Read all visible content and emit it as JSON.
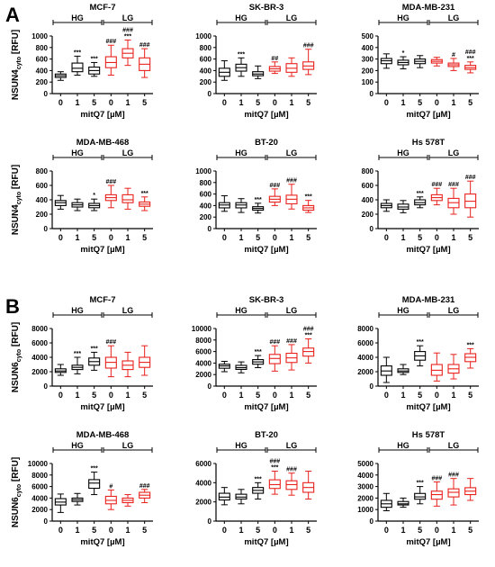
{
  "panel_labels": [
    "A",
    "B"
  ],
  "chart_data": [
    {
      "type": "box",
      "panel": "A",
      "title": "MCF-7",
      "ylabel": "NSUN4cyto [RFU]",
      "ylim": [
        0,
        1000
      ],
      "yticks": [
        0,
        200,
        400,
        600,
        800,
        1000
      ],
      "xlabel": "mitQ7 [µM]",
      "categories": [
        "0",
        "1",
        "5",
        "0",
        "1",
        "5"
      ],
      "groups": [
        "HG",
        "LG"
      ],
      "series": [
        {
          "name": "HG",
          "color": "#000000",
          "boxes": [
            [
              230,
              280,
              310,
              340,
              380
            ],
            [
              320,
              380,
              440,
              530,
              650
            ],
            [
              300,
              340,
              400,
              460,
              540
            ]
          ]
        },
        {
          "name": "LG",
          "color": "#e8211c",
          "boxes": [
            [
              320,
              450,
              540,
              640,
              840
            ],
            [
              490,
              620,
              700,
              780,
              930
            ],
            [
              280,
              400,
              510,
              620,
              780
            ]
          ]
        }
      ],
      "sig_top": [
        "",
        "***",
        "***",
        "",
        "###",
        ""
      ],
      "sig_bottom": [
        "",
        "",
        "",
        "###",
        "***",
        "###"
      ]
    },
    {
      "type": "box",
      "panel": "A",
      "title": "SK-BR-3",
      "ylabel": "",
      "ylim": [
        0,
        1000
      ],
      "yticks": [
        0,
        200,
        400,
        600,
        800,
        1000
      ],
      "xlabel": "mitQ7 [µM]",
      "categories": [
        "0",
        "1",
        "5",
        "0",
        "1",
        "5"
      ],
      "groups": [
        "HG",
        "LG"
      ],
      "series": [
        {
          "name": "HG",
          "color": "#000000",
          "boxes": [
            [
              230,
              300,
              370,
              440,
              570
            ],
            [
              300,
              390,
              450,
              510,
              620
            ],
            [
              260,
              310,
              340,
              380,
              480
            ]
          ]
        },
        {
          "name": "LG",
          "color": "#e8211c",
          "boxes": [
            [
              350,
              390,
              430,
              470,
              550
            ],
            [
              300,
              370,
              440,
              520,
              620
            ],
            [
              330,
              420,
              480,
              550,
              770
            ]
          ]
        }
      ],
      "sig_top": [
        "",
        "***",
        "",
        "",
        "",
        "###"
      ],
      "sig_bottom": [
        "",
        "",
        "",
        "##",
        "",
        ""
      ]
    },
    {
      "type": "box",
      "panel": "A",
      "title": "MDA-MB-231",
      "ylabel": "",
      "ylim": [
        0,
        500
      ],
      "yticks": [
        0,
        100,
        200,
        300,
        400,
        500
      ],
      "xlabel": "mitQ7 [µM]",
      "categories": [
        "0",
        "1",
        "5",
        "0",
        "1",
        "5"
      ],
      "groups": [
        "HG",
        "LG"
      ],
      "series": [
        {
          "name": "HG",
          "color": "#000000",
          "boxes": [
            [
              220,
              260,
              285,
              305,
              345
            ],
            [
              215,
              250,
              270,
              290,
              320
            ],
            [
              225,
              260,
              280,
              300,
              330
            ]
          ]
        },
        {
          "name": "LG",
          "color": "#e8211c",
          "boxes": [
            [
              240,
              265,
              280,
              295,
              315
            ],
            [
              200,
              235,
              250,
              265,
              305
            ],
            [
              180,
              210,
              225,
              245,
              275
            ]
          ]
        }
      ],
      "sig_top": [
        "",
        "*",
        "",
        "",
        "#",
        "###"
      ],
      "sig_bottom": [
        "",
        "",
        "",
        "",
        "",
        "***"
      ]
    },
    {
      "type": "box",
      "panel": "A",
      "title": "MDA-MB-468",
      "ylabel": "NSUN4cyto [RFU]",
      "ylim": [
        0,
        800
      ],
      "yticks": [
        0,
        200,
        400,
        600,
        800
      ],
      "xlabel": "mitQ7 [µM]",
      "categories": [
        "0",
        "1",
        "5",
        "0",
        "1",
        "5"
      ],
      "groups": [
        "HG",
        "LG"
      ],
      "series": [
        {
          "name": "HG",
          "color": "#000000",
          "boxes": [
            [
              270,
              320,
              360,
              390,
              460
            ],
            [
              250,
              300,
              330,
              360,
              410
            ],
            [
              250,
              290,
              320,
              350,
              410
            ]
          ]
        },
        {
          "name": "LG",
          "color": "#e8211c",
          "boxes": [
            [
              290,
              390,
              430,
              470,
              600
            ],
            [
              270,
              360,
              400,
              470,
              560
            ],
            [
              250,
              310,
              340,
              370,
              440
            ]
          ]
        }
      ],
      "sig_top": [
        "",
        "",
        "*",
        "###",
        "",
        "***"
      ],
      "sig_bottom": [
        "",
        "",
        "",
        "",
        "",
        ""
      ]
    },
    {
      "type": "box",
      "panel": "A",
      "title": "BT-20",
      "ylabel": "",
      "ylim": [
        0,
        1000
      ],
      "yticks": [
        0,
        200,
        400,
        600,
        800,
        1000
      ],
      "xlabel": "mitQ7 [µM]",
      "categories": [
        "0",
        "1",
        "5",
        "0",
        "1",
        "5"
      ],
      "groups": [
        "HG",
        "LG"
      ],
      "series": [
        {
          "name": "HG",
          "color": "#000000",
          "boxes": [
            [
              300,
              360,
              410,
              450,
              570
            ],
            [
              280,
              360,
              410,
              450,
              520
            ],
            [
              270,
              320,
              350,
              380,
              440
            ]
          ]
        },
        {
          "name": "LG",
          "color": "#e8211c",
          "boxes": [
            [
              400,
              460,
              510,
              560,
              690
            ],
            [
              340,
              430,
              510,
              580,
              770
            ],
            [
              280,
              320,
              360,
              400,
              490
            ]
          ]
        }
      ],
      "sig_top": [
        "",
        "",
        "***",
        "###",
        "###",
        "***"
      ],
      "sig_bottom": [
        "",
        "",
        "",
        "",
        "",
        ""
      ]
    },
    {
      "type": "box",
      "panel": "A",
      "title": "Hs 578T",
      "ylabel": "",
      "ylim": [
        0,
        800
      ],
      "yticks": [
        0,
        200,
        400,
        600,
        800
      ],
      "xlabel": "mitQ7 [µM]",
      "categories": [
        "0",
        "1",
        "5",
        "0",
        "1",
        "5"
      ],
      "groups": [
        "HG",
        "LG"
      ],
      "series": [
        {
          "name": "HG",
          "color": "#000000",
          "boxes": [
            [
              240,
              290,
              320,
              350,
              400
            ],
            [
              220,
              270,
              300,
              340,
              390
            ],
            [
              290,
              330,
              360,
              400,
              440
            ]
          ]
        },
        {
          "name": "LG",
          "color": "#e8211c",
          "boxes": [
            [
              330,
              390,
              430,
              470,
              560
            ],
            [
              200,
              290,
              360,
              420,
              560
            ],
            [
              160,
              290,
              380,
              480,
              660
            ]
          ]
        }
      ],
      "sig_top": [
        "",
        "",
        "***",
        "###",
        "###",
        "###"
      ],
      "sig_bottom": [
        "",
        "",
        "",
        "",
        "",
        ""
      ]
    },
    {
      "type": "box",
      "panel": "B",
      "title": "MCF-7",
      "ylabel": "NSUN6cyto [RFU]",
      "ylim": [
        0,
        8000
      ],
      "yticks": [
        0,
        2000,
        4000,
        6000,
        8000
      ],
      "xlabel": "mitQ7 [µM]",
      "categories": [
        "0",
        "1",
        "5",
        "0",
        "1",
        "5"
      ],
      "groups": [
        "HG",
        "LG"
      ],
      "series": [
        {
          "name": "HG",
          "color": "#000000",
          "boxes": [
            [
              1500,
              1900,
              2100,
              2400,
              3000
            ],
            [
              1700,
              2300,
              2600,
              2900,
              4000
            ],
            [
              2200,
              2900,
              3400,
              3900,
              4700
            ]
          ]
        },
        {
          "name": "LG",
          "color": "#e8211c",
          "boxes": [
            [
              1300,
              2500,
              3300,
              4000,
              5600
            ],
            [
              1300,
              2300,
              2900,
              3500,
              4700
            ],
            [
              1500,
              2600,
              3300,
              4000,
              5600
            ]
          ]
        }
      ],
      "sig_top": [
        "",
        "***",
        "***",
        "###",
        "",
        ""
      ],
      "sig_bottom": [
        "",
        "",
        "",
        "",
        "",
        ""
      ]
    },
    {
      "type": "box",
      "panel": "B",
      "title": "SK-BR-3",
      "ylabel": "",
      "ylim": [
        0,
        10000
      ],
      "yticks": [
        0,
        2000,
        4000,
        6000,
        8000,
        10000
      ],
      "xlabel": "mitQ7 [µM]",
      "categories": [
        "0",
        "1",
        "5",
        "0",
        "1",
        "5"
      ],
      "groups": [
        "HG",
        "LG"
      ],
      "series": [
        {
          "name": "HG",
          "color": "#000000",
          "boxes": [
            [
              2500,
              3100,
              3500,
              3800,
              4300
            ],
            [
              2300,
              2900,
              3200,
              3600,
              4200
            ],
            [
              3200,
              3800,
              4200,
              4600,
              5300
            ]
          ]
        },
        {
          "name": "LG",
          "color": "#e8211c",
          "boxes": [
            [
              2600,
              3900,
              4800,
              5500,
              7000
            ],
            [
              2800,
              4100,
              4900,
              5700,
              7200
            ],
            [
              4000,
              5200,
              6000,
              6600,
              8200
            ]
          ]
        }
      ],
      "sig_top": [
        "",
        "",
        "***",
        "###",
        "###",
        "###"
      ],
      "sig_bottom": [
        "",
        "",
        "",
        "",
        "",
        "***"
      ]
    },
    {
      "type": "box",
      "panel": "B",
      "title": "MDA-MB-231",
      "ylabel": "",
      "ylim": [
        0,
        8000
      ],
      "yticks": [
        0,
        2000,
        4000,
        6000,
        8000
      ],
      "xlabel": "mitQ7 [µM]",
      "categories": [
        "0",
        "1",
        "5",
        "0",
        "1",
        "5"
      ],
      "groups": [
        "HG",
        "LG"
      ],
      "series": [
        {
          "name": "HG",
          "color": "#000000",
          "boxes": [
            [
              500,
              1500,
              2100,
              2800,
              4000
            ],
            [
              1600,
              1900,
              2100,
              2400,
              3000
            ],
            [
              2800,
              3600,
              4200,
              4800,
              5600
            ]
          ]
        },
        {
          "name": "LG",
          "color": "#e8211c",
          "boxes": [
            [
              700,
              1500,
              2200,
              3000,
              4600
            ],
            [
              1000,
              1800,
              2400,
              3000,
              4400
            ],
            [
              2500,
              3400,
              4000,
              4500,
              5200
            ]
          ]
        }
      ],
      "sig_top": [
        "",
        "",
        "***",
        "",
        "",
        "***"
      ],
      "sig_bottom": [
        "",
        "",
        "",
        "",
        "",
        ""
      ]
    },
    {
      "type": "box",
      "panel": "B",
      "title": "MDA-MB-468",
      "ylabel": "NSUN6cyto [RFU]",
      "ylim": [
        0,
        10000
      ],
      "yticks": [
        0,
        2000,
        4000,
        6000,
        8000,
        10000
      ],
      "xlabel": "mitQ7 [µM]",
      "categories": [
        "0",
        "1",
        "5",
        "0",
        "1",
        "5"
      ],
      "groups": [
        "HG",
        "LG"
      ],
      "series": [
        {
          "name": "HG",
          "color": "#000000",
          "boxes": [
            [
              1500,
              2800,
              3300,
              3900,
              4700
            ],
            [
              2800,
              3400,
              3700,
              4000,
              4800
            ],
            [
              4600,
              5700,
              6600,
              7200,
              8500
            ]
          ]
        },
        {
          "name": "LG",
          "color": "#e8211c",
          "boxes": [
            [
              2000,
              3000,
              3600,
              4300,
              5400
            ],
            [
              2600,
              3200,
              3600,
              4000,
              4600
            ],
            [
              3200,
              4000,
              4500,
              5000,
              5500
            ]
          ]
        }
      ],
      "sig_top": [
        "",
        "",
        "***",
        "#",
        "",
        "###"
      ],
      "sig_bottom": [
        "",
        "",
        "",
        "",
        "",
        ""
      ]
    },
    {
      "type": "box",
      "panel": "B",
      "title": "BT-20",
      "ylabel": "",
      "ylim": [
        0,
        6000
      ],
      "yticks": [
        0,
        2000,
        4000,
        6000
      ],
      "xlabel": "mitQ7 [µM]",
      "categories": [
        "0",
        "1",
        "5",
        "0",
        "1",
        "5"
      ],
      "groups": [
        "HG",
        "LG"
      ],
      "series": [
        {
          "name": "HG",
          "color": "#000000",
          "boxes": [
            [
              1700,
              2200,
              2500,
              2900,
              3500
            ],
            [
              1800,
              2300,
              2500,
              2800,
              3300
            ],
            [
              2300,
              2900,
              3200,
              3500,
              4000
            ]
          ]
        },
        {
          "name": "LG",
          "color": "#e8211c",
          "boxes": [
            [
              2800,
              3400,
              3800,
              4300,
              5200
            ],
            [
              2700,
              3300,
              3800,
              4200,
              5000
            ],
            [
              2300,
              3000,
              3500,
              4000,
              5200
            ]
          ]
        }
      ],
      "sig_top": [
        "",
        "",
        "***",
        "###",
        "###",
        ""
      ],
      "sig_bottom": [
        "",
        "",
        "",
        "***",
        "",
        ""
      ]
    },
    {
      "type": "box",
      "panel": "B",
      "title": "Hs 578T",
      "ylabel": "",
      "ylim": [
        0,
        5000
      ],
      "yticks": [
        0,
        1000,
        2000,
        3000,
        4000,
        5000
      ],
      "xlabel": "mitQ7 [µM]",
      "categories": [
        "0",
        "1",
        "5",
        "0",
        "1",
        "5"
      ],
      "groups": [
        "HG",
        "LG"
      ],
      "series": [
        {
          "name": "HG",
          "color": "#000000",
          "boxes": [
            [
              900,
              1200,
              1500,
              1800,
              2400
            ],
            [
              1200,
              1400,
              1500,
              1700,
              2000
            ],
            [
              1500,
              1900,
              2100,
              2400,
              3000
            ]
          ]
        },
        {
          "name": "LG",
          "color": "#e8211c",
          "boxes": [
            [
              1300,
              1900,
              2300,
              2600,
              3400
            ],
            [
              1400,
              2100,
              2500,
              2800,
              3700
            ],
            [
              1800,
              2300,
              2600,
              2900,
              3700
            ]
          ]
        }
      ],
      "sig_top": [
        "",
        "",
        "***",
        "###",
        "###",
        ""
      ],
      "sig_bottom": [
        "",
        "",
        "",
        "",
        "",
        ""
      ]
    }
  ]
}
